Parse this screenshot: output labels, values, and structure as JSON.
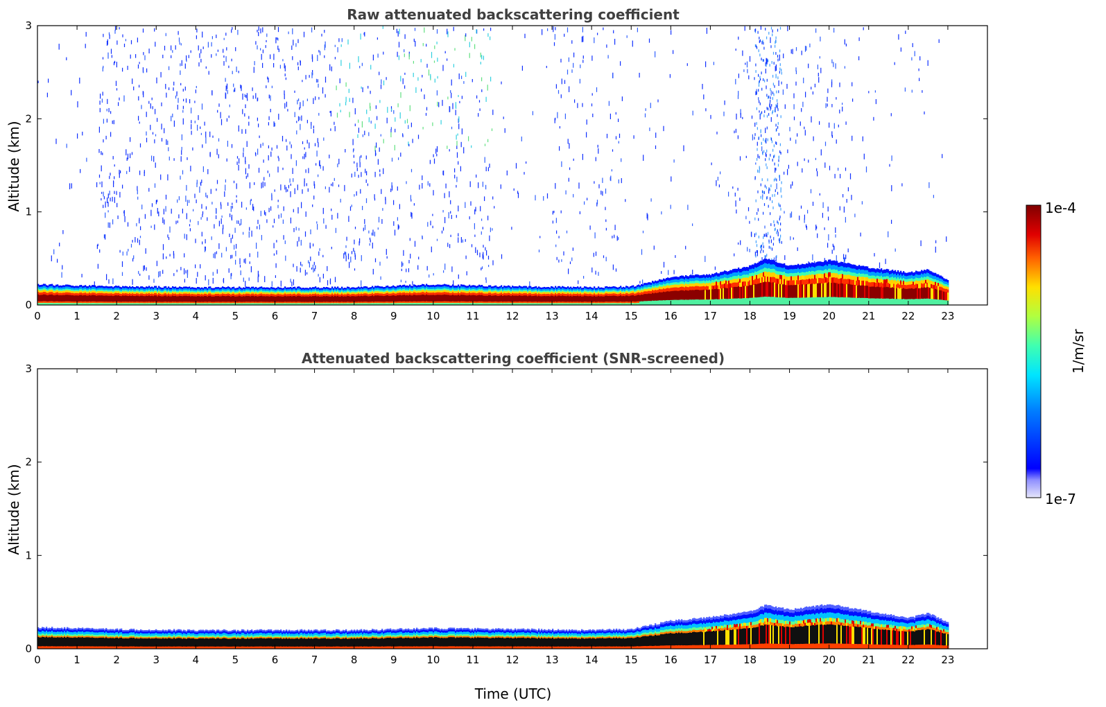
{
  "chart_data": [
    {
      "type": "heatmap",
      "title": "Raw attenuated backscattering coefficient",
      "xlabel": "",
      "ylabel": "Altitude (km)",
      "xlim": [
        0,
        24
      ],
      "ylim": [
        0,
        3
      ],
      "x_ticks": [
        0,
        1,
        2,
        3,
        4,
        5,
        6,
        7,
        8,
        9,
        10,
        11,
        12,
        13,
        14,
        15,
        16,
        17,
        18,
        19,
        20,
        21,
        22,
        23
      ],
      "y_ticks": [
        0,
        1,
        2,
        3
      ],
      "data_end_time": 23,
      "boundary_layer_top_km": {
        "time": [
          0,
          2,
          4,
          6,
          8,
          10,
          12,
          14,
          15,
          16,
          17,
          18,
          18.4,
          19,
          20,
          21,
          22,
          22.5,
          23
        ],
        "altitude": [
          0.22,
          0.2,
          0.19,
          0.19,
          0.19,
          0.22,
          0.2,
          0.19,
          0.2,
          0.3,
          0.33,
          0.42,
          0.5,
          0.42,
          0.48,
          0.4,
          0.35,
          0.38,
          0.26
        ]
      },
      "features": [
        "dense aerosol layer below ~0.2 km",
        "scattered noise pixels up to 3 km",
        "deep noise column near 18.4 UTC"
      ],
      "grid": false
    },
    {
      "type": "heatmap",
      "title": "Attenuated backscattering coefficient (SNR-screened)",
      "xlabel": "Time (UTC)",
      "ylabel": "Altitude (km)",
      "xlim": [
        0,
        24
      ],
      "ylim": [
        0,
        3
      ],
      "x_ticks": [
        0,
        1,
        2,
        3,
        4,
        5,
        6,
        7,
        8,
        9,
        10,
        11,
        12,
        13,
        14,
        15,
        16,
        17,
        18,
        19,
        20,
        21,
        22,
        23
      ],
      "y_ticks": [
        0,
        1,
        2,
        3
      ],
      "data_end_time": 23,
      "boundary_layer_top_km": {
        "time": [
          0,
          2,
          4,
          6,
          8,
          10,
          12,
          14,
          15,
          16,
          17,
          18,
          18.4,
          19,
          20,
          21,
          22,
          22.5,
          23
        ],
        "altitude": [
          0.23,
          0.21,
          0.2,
          0.2,
          0.2,
          0.22,
          0.21,
          0.2,
          0.21,
          0.3,
          0.34,
          0.4,
          0.47,
          0.42,
          0.48,
          0.4,
          0.33,
          0.38,
          0.28
        ]
      },
      "features": [
        "noise screened out above boundary layer",
        "saturated dark core below ~0.12 km"
      ],
      "grid": false
    }
  ],
  "colorbar": {
    "min_label": "1e-7",
    "max_label": "1e-4",
    "label": "1/m/sr",
    "scale": "log",
    "colormap": "jet"
  }
}
